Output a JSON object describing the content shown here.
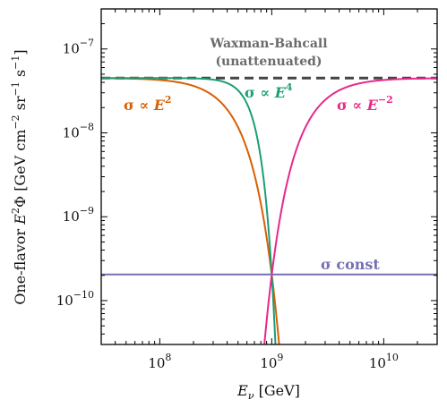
{
  "chart_data": {
    "type": "line",
    "xscale": "log",
    "yscale": "log",
    "xlim": [
      30000000,
      30000000000
    ],
    "ylim": [
      3e-11,
      3e-07
    ],
    "xlabel": "E_ν [GeV]",
    "ylabel": "One-flavor E²Φ [GeV cm⁻² sr⁻¹ s⁻¹]",
    "x_ticks": [
      {
        "value": 100000000,
        "base": "10",
        "exp": "8"
      },
      {
        "value": 1000000000,
        "base": "10",
        "exp": "9"
      },
      {
        "value": 10000000000,
        "base": "10",
        "exp": "10"
      }
    ],
    "y_ticks": [
      {
        "value": 1e-07,
        "base": "10",
        "exp": "−7"
      },
      {
        "value": 1e-08,
        "base": "10",
        "exp": "−8"
      },
      {
        "value": 1e-09,
        "base": "10",
        "exp": "−9"
      },
      {
        "value": 1e-10,
        "base": "10",
        "exp": "−10"
      }
    ],
    "grid": false,
    "series": [
      {
        "name": "Waxman-Bahcall (unattenuated)",
        "color": "#444444",
        "dash": true,
        "model": {
          "kind": "constant",
          "flux": 4.5e-08
        }
      },
      {
        "name": "σ ∝ E²",
        "color": "#d95f02",
        "model": {
          "kind": "attenuated",
          "flux": 4.5e-08,
          "tau_at_1e9": 5.4,
          "power": 2
        }
      },
      {
        "name": "σ ∝ E⁴",
        "color": "#1b9e77",
        "model": {
          "kind": "attenuated",
          "flux": 4.5e-08,
          "tau_at_1e9": 5.4,
          "power": 4
        }
      },
      {
        "name": "σ ∝ E⁻²",
        "color": "#e7298a",
        "model": {
          "kind": "attenuated",
          "flux": 4.5e-08,
          "tau_at_1e9": 5.4,
          "power": -2
        }
      },
      {
        "name": "σ const",
        "color": "#7570b3",
        "model": {
          "kind": "constant",
          "flux": 2.05e-10
        }
      }
    ],
    "annotations": {
      "wb_line1": "Waxman-Bahcall",
      "wb_line2": "(unattenuated)",
      "e2": "E",
      "e2_exp": "2",
      "e4": "E",
      "e4_exp": "4",
      "em2": "E",
      "em2_exp": "−2",
      "sigma": "σ",
      "propto": "∝",
      "const": "const"
    },
    "xlabel_parts": {
      "e": "E",
      "sub": "ν",
      "unit": " [GeV]"
    },
    "ylabel_parts": {
      "prefix": "One-flavor ",
      "e": "E",
      "e_exp": "2",
      "phi": "Φ",
      "units_pre": " [GeV cm",
      "cm_exp": "−2",
      "sr": " sr",
      "sr_exp": "−1",
      "s": " s",
      "s_exp": "−1",
      "close": "]"
    }
  }
}
